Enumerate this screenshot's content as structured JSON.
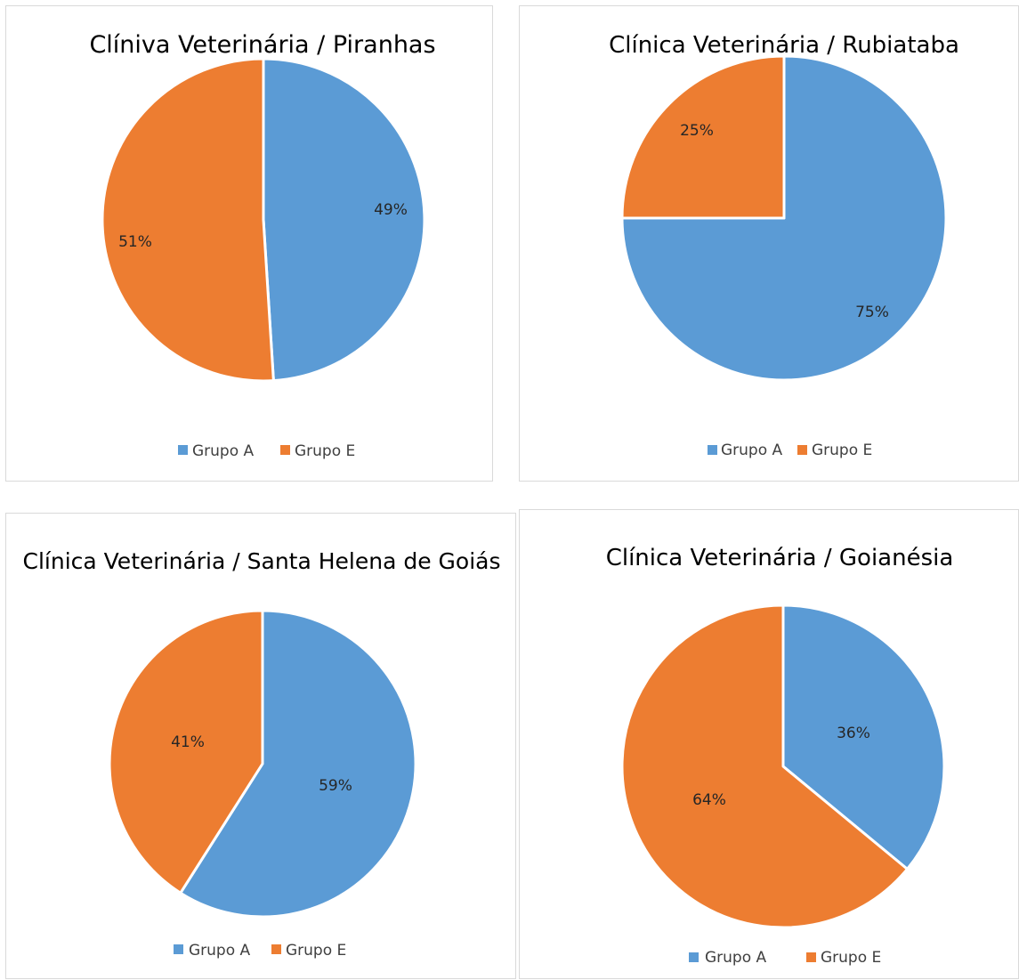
{
  "colors": {
    "grupo_a": "#5b9bd5",
    "grupo_e": "#ed7d31"
  },
  "chart_data": [
    {
      "type": "pie",
      "title": "Clíniva Veterinária / Piranhas",
      "categories": [
        "Grupo A",
        "Grupo E"
      ],
      "values": [
        49,
        51
      ],
      "data_labels": [
        "49%",
        "51%"
      ],
      "legend": {
        "position": "bottom",
        "entries": [
          "Grupo A",
          "Grupo E"
        ]
      }
    },
    {
      "type": "pie",
      "title": "Clínica Veterinária / Rubiataba",
      "categories": [
        "Grupo A",
        "Grupo E"
      ],
      "values": [
        75,
        25
      ],
      "data_labels": [
        "75%",
        "25%"
      ],
      "legend": {
        "position": "bottom",
        "entries": [
          "Grupo A",
          "Grupo E"
        ]
      }
    },
    {
      "type": "pie",
      "title": "Clínica Veterinária / Santa Helena de Goiás",
      "categories": [
        "Grupo A",
        "Grupo E"
      ],
      "values": [
        59,
        41
      ],
      "data_labels": [
        "59%",
        "41%"
      ],
      "legend": {
        "position": "bottom",
        "entries": [
          "Grupo A",
          "Grupo E"
        ]
      }
    },
    {
      "type": "pie",
      "title": "Clínica Veterinária / Goianésia",
      "categories": [
        "Grupo A",
        "Grupo E"
      ],
      "values": [
        36,
        64
      ],
      "data_labels": [
        "36%",
        "64%"
      ],
      "legend": {
        "position": "bottom",
        "entries": [
          "Grupo A",
          "Grupo E"
        ]
      }
    }
  ]
}
